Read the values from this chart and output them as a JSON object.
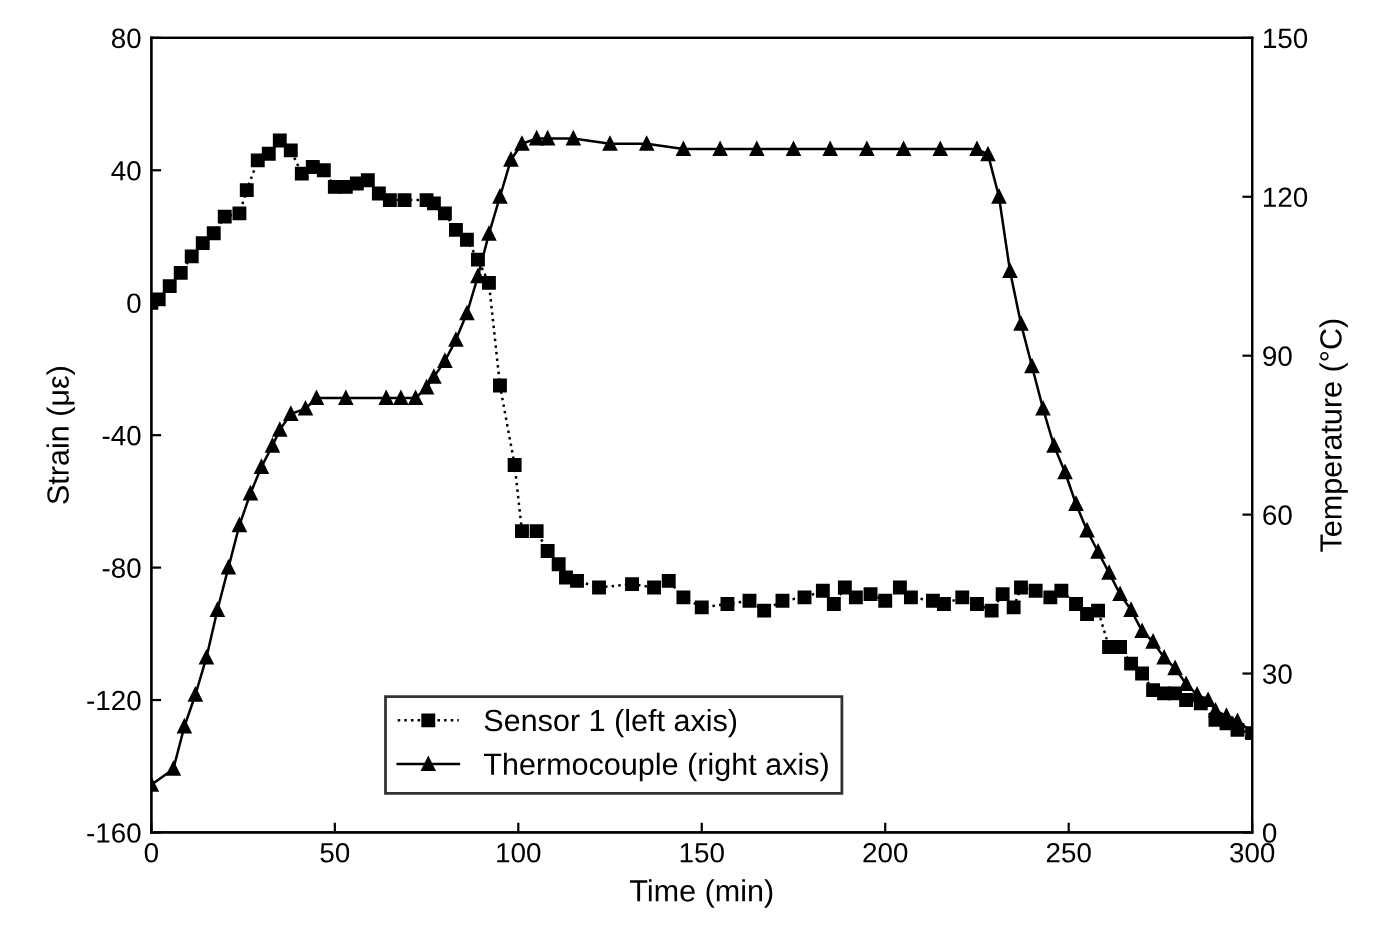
{
  "chart_data": {
    "type": "line",
    "xlabel": "Time (min)",
    "ylabel": "Strain (με)",
    "y2label": "Temperature (°C)",
    "xlim": [
      0,
      300
    ],
    "xticks": [
      0,
      50,
      100,
      150,
      200,
      250,
      300
    ],
    "ylim": [
      -160,
      80
    ],
    "yticks": [
      -160,
      -120,
      -80,
      -40,
      0,
      40,
      80
    ],
    "y2lim": [
      0,
      150
    ],
    "y2ticks": [
      0,
      30,
      60,
      90,
      120,
      150
    ],
    "grid": false,
    "legend": "bottom",
    "series": [
      {
        "name": "Sensor 1 (left axis)",
        "color": "#000000",
        "marker": "square",
        "line_style": "dotted",
        "axis": "y",
        "x": [
          0,
          2,
          5,
          8,
          11,
          14,
          17,
          20,
          24,
          26,
          29,
          32,
          35,
          38,
          41,
          44,
          47,
          50,
          53,
          56,
          59,
          62,
          65,
          69,
          75,
          77,
          80,
          83,
          86,
          89,
          92,
          95,
          99,
          101,
          105,
          108,
          111,
          113,
          116,
          122,
          131,
          137,
          141,
          145,
          150,
          157,
          163,
          167,
          172,
          178,
          183,
          186,
          189,
          192,
          196,
          200,
          204,
          207,
          213,
          216,
          221,
          225,
          229,
          232,
          235,
          237,
          241,
          245,
          248,
          252,
          255,
          258,
          261,
          264,
          267,
          270,
          273,
          276,
          279,
          282,
          286,
          290,
          293,
          296,
          300
        ],
        "values": [
          0,
          1,
          5,
          9,
          14,
          18,
          21,
          26,
          27,
          34,
          43,
          45,
          49,
          46,
          39,
          41,
          40,
          35,
          35,
          36,
          37,
          33,
          31,
          31,
          31,
          30,
          27,
          22,
          19,
          13,
          6,
          -25,
          -49,
          -69,
          -69,
          -75,
          -79,
          -83,
          -84,
          -86,
          -85,
          -86,
          -84,
          -89,
          -92,
          -91,
          -90,
          -93,
          -90,
          -89,
          -87,
          -91,
          -86,
          -89,
          -88,
          -90,
          -86,
          -89,
          -90,
          -91,
          -89,
          -91,
          -93,
          -88,
          -92,
          -86,
          -87,
          -89,
          -87,
          -91,
          -94,
          -93,
          -104,
          -104,
          -109,
          -112,
          -117,
          -118,
          -118,
          -120,
          -121,
          -126,
          -127,
          -129,
          -130
        ]
      },
      {
        "name": "Thermocouple (right axis)",
        "color": "#000000",
        "marker": "triangle",
        "line_style": "solid",
        "axis": "y2",
        "x": [
          0,
          6,
          9,
          12,
          15,
          18,
          21,
          24,
          27,
          30,
          33,
          35,
          38,
          42,
          45,
          53,
          64,
          68,
          72,
          75,
          77,
          80,
          83,
          86,
          89,
          92,
          95,
          98,
          101,
          105,
          108,
          115,
          125,
          135,
          145,
          155,
          165,
          175,
          185,
          195,
          205,
          215,
          225,
          228,
          231,
          234,
          237,
          240,
          243,
          246,
          249,
          252,
          255,
          258,
          261,
          264,
          267,
          270,
          273,
          276,
          279,
          282,
          285,
          288,
          290,
          293,
          296,
          300
        ],
        "values": [
          9,
          12,
          20,
          26,
          33,
          42,
          50,
          58,
          64,
          69,
          73,
          76,
          79,
          80,
          82,
          82,
          82,
          82,
          82,
          84,
          86,
          89,
          93,
          98,
          105,
          113,
          120,
          127,
          130,
          131,
          131,
          131,
          130,
          130,
          129,
          129,
          129,
          129,
          129,
          129,
          129,
          129,
          129,
          128,
          120,
          106,
          96,
          88,
          80,
          73,
          68,
          62,
          57,
          53,
          49,
          45,
          42,
          38,
          36,
          33,
          31,
          28,
          26,
          25,
          23,
          22,
          21,
          19
        ]
      }
    ]
  }
}
